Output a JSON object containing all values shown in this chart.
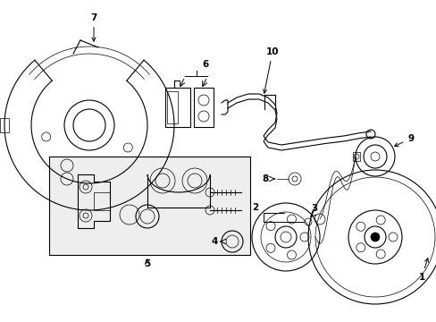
{
  "background_color": "#ffffff",
  "line_color": "#000000",
  "box_bg": "#eeeeee",
  "figsize": [
    4.89,
    3.6
  ],
  "dpi": 100
}
